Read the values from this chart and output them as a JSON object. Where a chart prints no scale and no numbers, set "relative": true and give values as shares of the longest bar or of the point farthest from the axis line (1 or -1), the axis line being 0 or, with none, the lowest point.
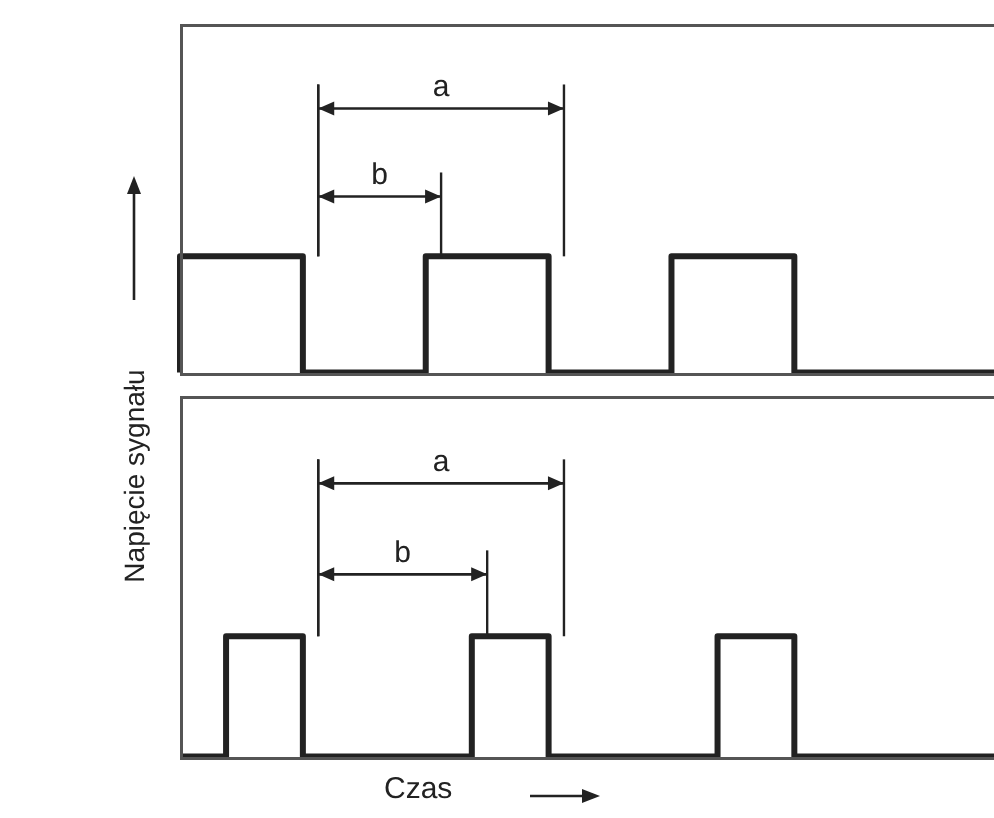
{
  "chart_data": [
    {
      "type": "step",
      "ylabel": "Napięcie sygnału",
      "relative": true,
      "tick_labels": false,
      "color": "#222222",
      "annotations": [
        "a",
        "b"
      ],
      "categories": [
        null,
        null,
        null,
        null,
        null,
        null,
        null,
        null,
        null,
        null,
        null,
        null,
        null,
        null,
        null,
        null,
        null,
        null,
        null,
        null,
        null,
        null,
        null,
        null,
        null,
        null,
        null,
        null,
        null,
        null,
        null,
        null,
        null,
        null,
        null,
        null,
        null,
        null,
        null,
        null,
        null,
        null,
        null,
        null,
        null,
        null,
        null,
        null,
        null,
        null,
        null,
        null,
        null,
        null
      ],
      "values": [
        0,
        1,
        1,
        1,
        1,
        1,
        1,
        1,
        1,
        0,
        0,
        0,
        0,
        0,
        0,
        0,
        0,
        1,
        1,
        1,
        1,
        1,
        1,
        1,
        1,
        0,
        0,
        0,
        0,
        0,
        0,
        0,
        0,
        1,
        1,
        1,
        1,
        1,
        1,
        1,
        1,
        0,
        0,
        0,
        0,
        0,
        0,
        0,
        0,
        0,
        0,
        0,
        0,
        0
      ]
    },
    {
      "type": "step",
      "xlabel": "Czas",
      "relative": true,
      "tick_labels": false,
      "color": "#222222",
      "annotations": [
        "a",
        "b"
      ],
      "categories": [
        null,
        null,
        null,
        null,
        null,
        null,
        null,
        null,
        null,
        null,
        null,
        null,
        null,
        null,
        null,
        null,
        null,
        null,
        null,
        null,
        null,
        null,
        null,
        null,
        null,
        null,
        null,
        null,
        null,
        null,
        null,
        null,
        null,
        null,
        null,
        null,
        null,
        null,
        null,
        null,
        null,
        null,
        null,
        null,
        null,
        null,
        null,
        null,
        null,
        null,
        null,
        null,
        null,
        null
      ],
      "values": [
        0,
        0,
        0,
        0,
        1,
        1,
        1,
        1,
        1,
        0,
        0,
        0,
        0,
        0,
        0,
        0,
        0,
        0,
        0,
        0,
        1,
        1,
        1,
        1,
        1,
        0,
        0,
        0,
        0,
        0,
        0,
        0,
        0,
        0,
        0,
        0,
        1,
        1,
        1,
        1,
        1,
        0,
        0,
        0,
        0,
        0,
        0,
        0,
        0,
        0,
        0,
        0,
        0,
        0
      ]
    }
  ]
}
